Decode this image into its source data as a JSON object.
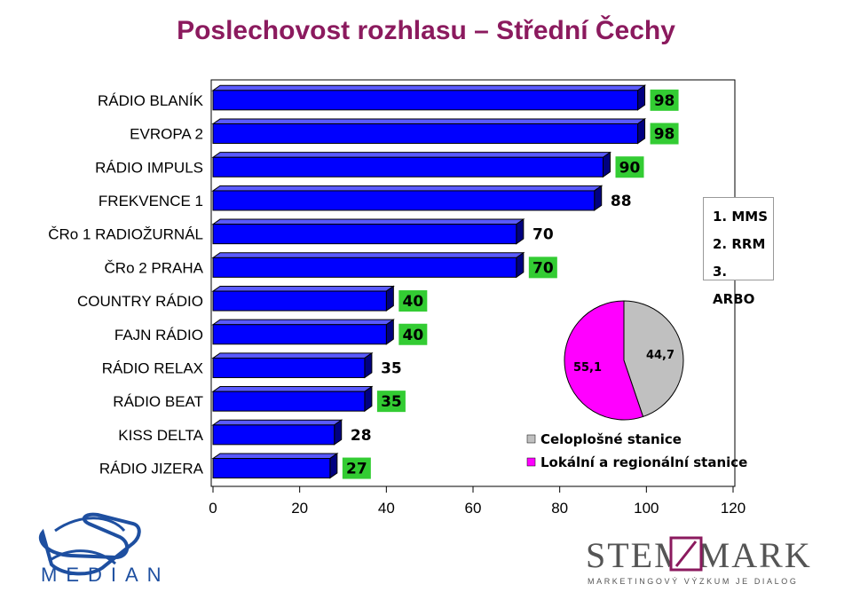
{
  "title": "Poslechovost rozhlasu – Střední Čechy",
  "method_legend": [
    "1. MMS",
    "2. RRM",
    "3. ARBO"
  ],
  "chart_data": [
    {
      "type": "bar",
      "orientation": "horizontal",
      "title": "Poslechovost rozhlasu – Střední Čechy",
      "categories": [
        "RÁDIO BLANÍK",
        "EVROPA 2",
        "RÁDIO IMPULS",
        "FREKVENCE 1",
        "ČRo 1 RADIOŽURNÁL",
        "ČRo 2 PRAHA",
        "COUNTRY RÁDIO",
        "FAJN RÁDIO",
        "RÁDIO RELAX",
        "RÁDIO BEAT",
        "KISS DELTA",
        "RÁDIO JIZERA"
      ],
      "values": [
        98,
        98,
        90,
        88,
        70,
        70,
        40,
        40,
        35,
        35,
        28,
        27
      ],
      "data_labels": [
        "98",
        "98",
        "90",
        "88",
        "70",
        "70",
        "40",
        "40",
        "35",
        "35",
        "28",
        "27"
      ],
      "label_highlight": [
        true,
        true,
        true,
        false,
        false,
        true,
        true,
        true,
        false,
        true,
        false,
        true
      ],
      "xlim": [
        0,
        120
      ],
      "xticks": [
        "0",
        "20",
        "40",
        "60",
        "80",
        "100",
        "120"
      ],
      "bar_color": "#0000FF",
      "label_highlight_color": "#33CC33",
      "grid": false
    },
    {
      "type": "pie",
      "slices": [
        {
          "name": "Celoplošné stanice",
          "value": 44.7,
          "label": "44,7",
          "color": "#C0C0C0"
        },
        {
          "name": "Lokální a regionální stanice",
          "value": 55.1,
          "label": "55,1",
          "color": "#FF00FF"
        }
      ],
      "legend_position": "bottom"
    }
  ],
  "logos": {
    "median": "MEDIAN",
    "stem_mark": "STEM MARK",
    "stem_mark_tagline": "MARKETINGOVÝ VÝZKUM JE DIALOG"
  }
}
